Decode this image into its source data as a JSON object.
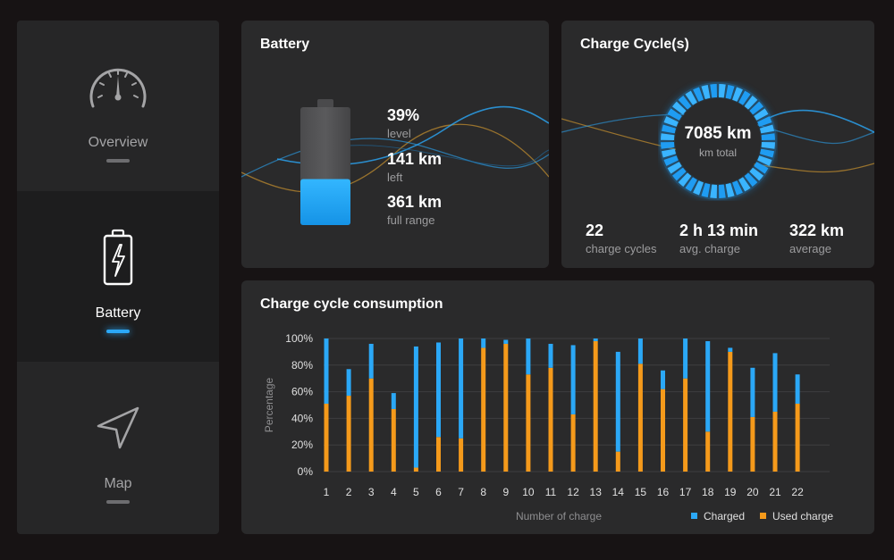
{
  "sidebar": {
    "items": [
      {
        "label": "Overview",
        "icon": "speedometer-icon",
        "active": false
      },
      {
        "label": "Battery",
        "icon": "battery-icon",
        "active": true
      },
      {
        "label": "Map",
        "icon": "navigation-icon",
        "active": false
      }
    ]
  },
  "battery": {
    "title": "Battery",
    "level_fraction": 0.39,
    "stats": [
      {
        "value": "39%",
        "label": "level"
      },
      {
        "value": "141 km",
        "label": "left"
      },
      {
        "value": "361 km",
        "label": "full range"
      }
    ]
  },
  "cycles": {
    "title": "Charge Cycle(s)",
    "ring_value": "7085 km",
    "ring_label": "km total",
    "stats": [
      {
        "value": "22",
        "label": "charge cycles"
      },
      {
        "value": "2 h 13 min",
        "label": "avg. charge"
      },
      {
        "value": "322 km",
        "label": "average"
      }
    ]
  },
  "colors": {
    "accent_blue": "#2ba8f7",
    "used_orange": "#f59a1b",
    "wave_gold": "#c8912f"
  },
  "consumption": {
    "title": "Charge cycle consumption",
    "chart_data": {
      "type": "bar",
      "stacked": true,
      "title": "Charge cycle consumption",
      "xlabel": "Number of charge",
      "ylabel": "Percentage",
      "ylim": [
        0,
        100
      ],
      "yticks": [
        "0%",
        "20%",
        "40%",
        "60%",
        "80%",
        "100%"
      ],
      "categories": [
        "1",
        "2",
        "3",
        "4",
        "5",
        "6",
        "7",
        "8",
        "9",
        "10",
        "11",
        "12",
        "13",
        "14",
        "15",
        "16",
        "17",
        "18",
        "19",
        "20",
        "21",
        "22"
      ],
      "series": [
        {
          "name": "Used charge",
          "color": "#f59a1b",
          "values": [
            51,
            57,
            70,
            47,
            3,
            26,
            25,
            93,
            96,
            73,
            78,
            43,
            98,
            15,
            81,
            62,
            70,
            30,
            90,
            41,
            45,
            51
          ]
        },
        {
          "name": "Charged",
          "color": "#2ba8f7",
          "values": [
            49,
            20,
            26,
            12,
            91,
            71,
            75,
            7,
            3,
            27,
            18,
            52,
            2,
            75,
            19,
            14,
            30,
            68,
            3,
            37,
            44,
            22
          ]
        }
      ],
      "legend": [
        {
          "name": "Charged",
          "color": "#2ba8f7"
        },
        {
          "name": "Used charge",
          "color": "#f59a1b"
        }
      ],
      "legend_position": "bottom-right",
      "grid": true
    }
  }
}
